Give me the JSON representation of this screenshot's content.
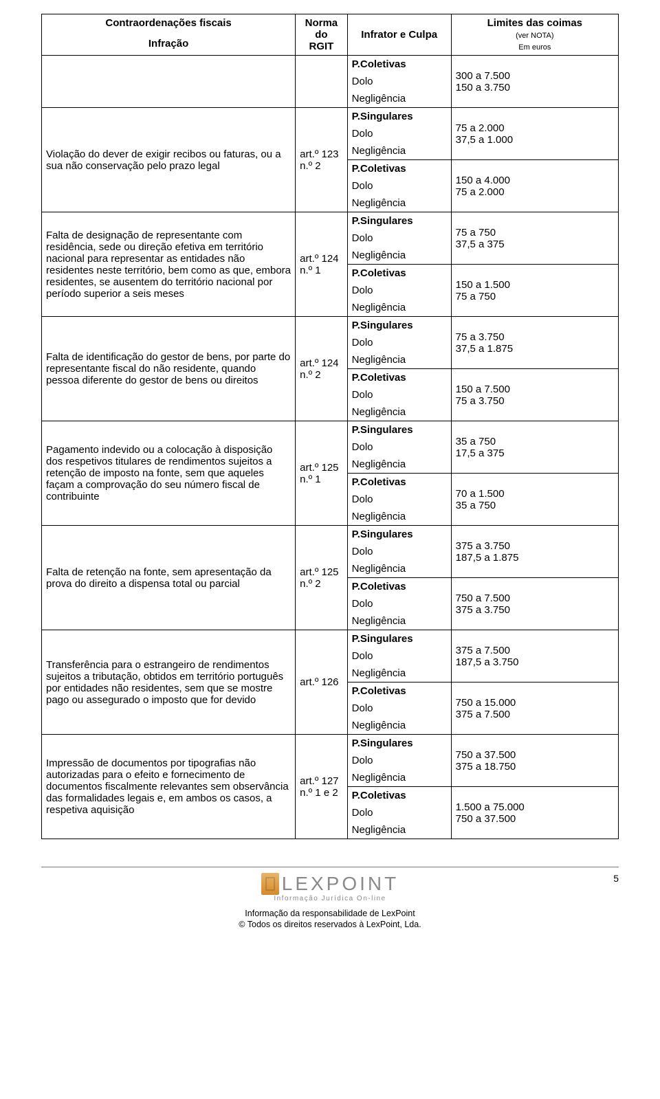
{
  "header": {
    "col1_title": "Contraordenações fiscais",
    "col1_sub": "Infração",
    "col2": "Norma do RGIT",
    "col3": "Infrator e Culpa",
    "col4_title": "Limites das coimas",
    "col4_note": "(ver NOTA)",
    "col4_unit": "Em euros"
  },
  "labels": {
    "psing": "P.Singulares",
    "pcol": "P.Coletivas",
    "dolo": "Dolo",
    "negl": "Negligência"
  },
  "rows": [
    {
      "infracao": "",
      "norma": "",
      "groups": [
        {
          "type": "pcol",
          "v1": "300 a 7.500",
          "v2": "150 a 3.750"
        }
      ]
    },
    {
      "infracao": "Violação do dever de exigir recibos ou faturas, ou a sua não conservação pelo prazo legal",
      "norma": "art.º 123 n.º 2",
      "groups": [
        {
          "type": "psing",
          "v1": "75 a 2.000",
          "v2": "37,5 a 1.000"
        },
        {
          "type": "pcol",
          "v1": "150 a 4.000",
          "v2": "75 a 2.000"
        }
      ]
    },
    {
      "infracao": "Falta de designação de representante com residência, sede ou direção efetiva em território nacional para representar as entidades não residentes neste território, bem como as que, embora residentes, se ausentem do território nacional por período superior a seis meses",
      "norma": "art.º 124 n.º 1",
      "groups": [
        {
          "type": "psing",
          "v1": "75 a 750",
          "v2": "37,5 a 375"
        },
        {
          "type": "pcol",
          "v1": "150 a 1.500",
          "v2": "75 a 750"
        }
      ]
    },
    {
      "infracao": "Falta de identificação do gestor de bens, por parte do representante fiscal do não residente, quando pessoa diferente do gestor de bens ou direitos",
      "norma": "art.º 124 n.º 2",
      "groups": [
        {
          "type": "psing",
          "v1": "75 a 3.750",
          "v2": "37,5 a 1.875"
        },
        {
          "type": "pcol",
          "v1": "150 a 7.500",
          "v2": "75 a 3.750"
        }
      ]
    },
    {
      "infracao": "Pagamento indevido ou a colocação à disposição dos respetivos titulares de rendimentos sujeitos a retenção de imposto na fonte, sem que aqueles façam a comprovação do seu número fiscal de contribuinte",
      "norma": "art.º 125 n.º 1",
      "groups": [
        {
          "type": "psing",
          "v1": "35 a 750",
          "v2": "17,5 a 375"
        },
        {
          "type": "pcol",
          "v1": "70 a 1.500",
          "v2": "35 a 750"
        }
      ]
    },
    {
      "infracao": "Falta de retenção na fonte, sem apresentação da prova do direito a dispensa total ou parcial",
      "norma": "art.º 125 n.º 2",
      "groups": [
        {
          "type": "psing",
          "v1": "375 a 3.750",
          "v2": "187,5 a 1.875"
        },
        {
          "type": "pcol",
          "v1": "750 a 7.500",
          "v2": "375 a 3.750"
        }
      ]
    },
    {
      "infracao": "Transferência para o estrangeiro de rendimentos sujeitos a tributação, obtidos em território português por entidades não residentes, sem que se mostre pago ou assegurado o imposto que for devido",
      "norma": "art.º 126",
      "groups": [
        {
          "type": "psing",
          "v1": "375 a 7.500",
          "v2": "187,5 a 3.750"
        },
        {
          "type": "pcol",
          "v1": "750 a 15.000",
          "v2": "375 a 7.500"
        }
      ]
    },
    {
      "infracao": "Impressão de documentos por tipografias não autorizadas para o efeito e fornecimento de documentos fiscalmente relevantes sem observância das formalidades legais e, em ambos os casos, a respetiva aquisição",
      "norma": "art.º 127 n.º 1 e 2",
      "groups": [
        {
          "type": "psing",
          "v1": "750 a 37.500",
          "v2": "375 a 18.750"
        },
        {
          "type": "pcol",
          "v1": "1.500 a 75.000",
          "v2": "750 a 37.500"
        }
      ]
    }
  ],
  "footer": {
    "logo_text": "LEXPOINT",
    "logo_sub": "Informação Jurídica On-line",
    "line1": "Informação da responsabilidade de LexPoint",
    "line2": "© Todos os direitos reservados à LexPoint, Lda.",
    "page": "5"
  }
}
